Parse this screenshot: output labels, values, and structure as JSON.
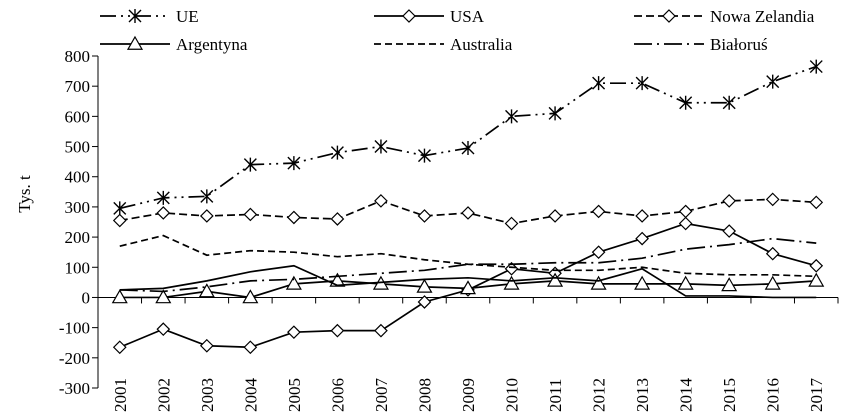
{
  "chart_data": {
    "type": "line",
    "title": "",
    "xlabel": "",
    "ylabel": "Tys. t",
    "ylim": [
      -300,
      800
    ],
    "yticks": [
      -300,
      -200,
      -100,
      0,
      100,
      200,
      300,
      400,
      500,
      600,
      700,
      800
    ],
    "grid": false,
    "legend_position": "top",
    "categories": [
      "2001",
      "2002",
      "2003",
      "2004",
      "2005",
      "2006",
      "2007",
      "2008",
      "2009",
      "2010",
      "2011",
      "2012",
      "2013",
      "2014",
      "2015",
      "2016",
      "2017"
    ],
    "series": [
      {
        "name": "UE",
        "style": "long-dash-dot-dot",
        "marker": "asterisk",
        "values": [
          295,
          330,
          335,
          440,
          445,
          480,
          500,
          470,
          495,
          600,
          610,
          710,
          710,
          645,
          645,
          715,
          765
        ]
      },
      {
        "name": "USA",
        "style": "solid",
        "marker": "diamond",
        "values": [
          -165,
          -105,
          -160,
          -165,
          -115,
          -110,
          -110,
          -15,
          25,
          95,
          80,
          150,
          195,
          245,
          220,
          145,
          105
        ]
      },
      {
        "name": "Nowa Zelandia",
        "style": "dashed",
        "marker": "diamond",
        "values": [
          255,
          280,
          270,
          275,
          265,
          260,
          320,
          270,
          280,
          245,
          270,
          285,
          270,
          285,
          320,
          325,
          315
        ]
      },
      {
        "name": "Argentyna",
        "style": "solid",
        "marker": "triangle",
        "values": [
          0,
          0,
          20,
          0,
          45,
          55,
          45,
          35,
          30,
          45,
          55,
          45,
          45,
          45,
          40,
          45,
          55
        ]
      },
      {
        "name": "Australia",
        "style": "short-dash",
        "marker": "none",
        "values": [
          170,
          205,
          140,
          155,
          150,
          135,
          145,
          125,
          110,
          100,
          90,
          90,
          100,
          80,
          75,
          75,
          70
        ]
      },
      {
        "name": "Białoruś",
        "style": "long-dash-dot",
        "marker": "none",
        "values": [
          25,
          20,
          35,
          55,
          60,
          70,
          80,
          90,
          110,
          110,
          115,
          115,
          130,
          160,
          175,
          195,
          180
        ]
      },
      {
        "name": "",
        "style": "solid",
        "marker": "none",
        "values": [
          25,
          30,
          55,
          85,
          105,
          40,
          50,
          60,
          65,
          55,
          65,
          55,
          95,
          5,
          5,
          0,
          0
        ]
      }
    ]
  }
}
